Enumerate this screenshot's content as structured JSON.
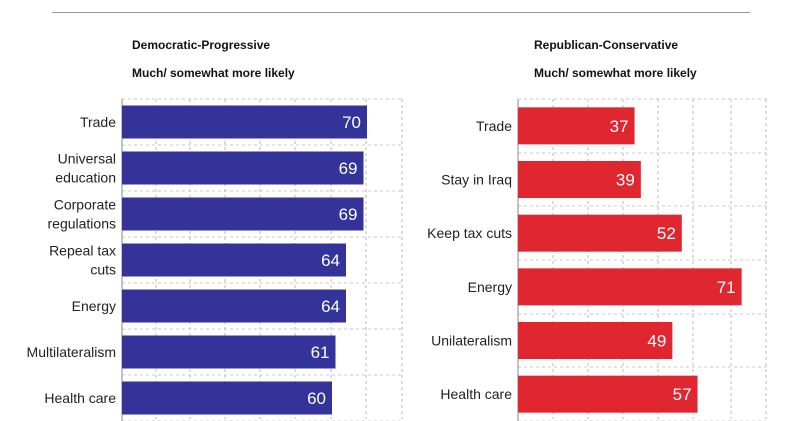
{
  "chart_data": [
    {
      "type": "bar",
      "orientation": "horizontal",
      "title": "Democratic-Progressive",
      "subtitle": "Much/ somewhat more likely",
      "color": "#333399",
      "categories": [
        [
          "Trade"
        ],
        [
          "Universal",
          "education"
        ],
        [
          "Corporate",
          "regulations"
        ],
        [
          "Repeal tax",
          "cuts"
        ],
        [
          "Energy"
        ],
        [
          "Multilateralism"
        ],
        [
          "Health care"
        ]
      ],
      "values": [
        70,
        69,
        69,
        64,
        64,
        61,
        60
      ],
      "xlim": [
        0,
        80
      ],
      "grid": true
    },
    {
      "type": "bar",
      "orientation": "horizontal",
      "title": "Republican-Conservative",
      "subtitle": "Much/ somewhat more likely",
      "color": "#e0262f",
      "categories": [
        [
          "Trade"
        ],
        [
          "Stay in Iraq"
        ],
        [
          "Keep tax cuts"
        ],
        [
          "Energy"
        ],
        [
          "Unilateralism"
        ],
        [
          "Health care"
        ]
      ],
      "values": [
        37,
        39,
        52,
        71,
        49,
        57
      ],
      "xlim": [
        0,
        80
      ],
      "grid": true
    }
  ]
}
